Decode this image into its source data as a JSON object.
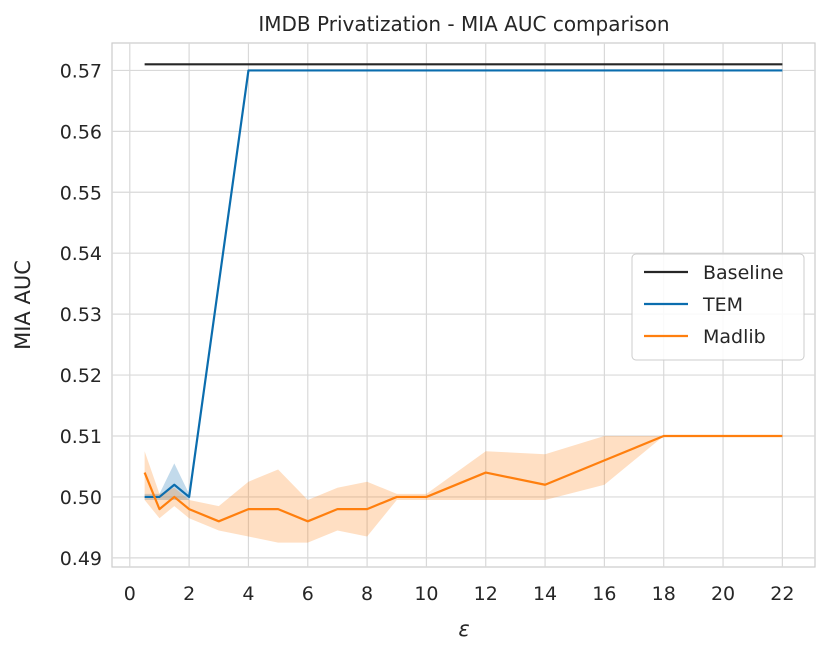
{
  "chart_data": {
    "type": "line",
    "title": "IMDB Privatization - MIA AUC comparison",
    "xlabel": "ε",
    "ylabel": "MIA AUC",
    "xlim": [
      -0.6,
      23.1
    ],
    "ylim": [
      0.4885,
      0.5745
    ],
    "xticks": [
      0,
      2,
      4,
      6,
      8,
      10,
      12,
      14,
      16,
      18,
      20,
      22
    ],
    "yticks": [
      0.49,
      0.5,
      0.51,
      0.52,
      0.53,
      0.54,
      0.55,
      0.56,
      0.57
    ],
    "ytick_labels": [
      "0.49",
      "0.50",
      "0.51",
      "0.52",
      "0.53",
      "0.54",
      "0.55",
      "0.56",
      "0.57"
    ],
    "grid": true,
    "legend_position": "center-right",
    "series": [
      {
        "name": "Baseline",
        "color": "#262626",
        "x": [
          0.5,
          22
        ],
        "values": [
          0.571,
          0.571
        ]
      },
      {
        "name": "TEM",
        "color": "#0b6dae",
        "x": [
          0.5,
          1,
          1.5,
          2,
          4,
          6,
          8,
          10,
          12,
          14,
          16,
          18,
          20,
          22
        ],
        "values": [
          0.5,
          0.5,
          0.502,
          0.5,
          0.57,
          0.57,
          0.57,
          0.57,
          0.57,
          0.57,
          0.57,
          0.57,
          0.57,
          0.57
        ],
        "band_lower": [
          0.4995,
          0.4995,
          0.4995,
          0.4995,
          0.57,
          0.57,
          0.57,
          0.57,
          0.57,
          0.57,
          0.57,
          0.57,
          0.57,
          0.57
        ],
        "band_upper": [
          0.5005,
          0.5005,
          0.5055,
          0.5005,
          0.57,
          0.57,
          0.57,
          0.57,
          0.57,
          0.57,
          0.57,
          0.57,
          0.57,
          0.57
        ]
      },
      {
        "name": "Madlib",
        "color": "#ff7f0e",
        "x": [
          0.5,
          1,
          1.5,
          2,
          3,
          4,
          5,
          6,
          7,
          8,
          9,
          10,
          12,
          14,
          16,
          18,
          20,
          22
        ],
        "values": [
          0.504,
          0.498,
          0.5,
          0.498,
          0.496,
          0.498,
          0.498,
          0.496,
          0.498,
          0.498,
          0.5,
          0.5,
          0.504,
          0.502,
          0.506,
          0.51,
          0.51,
          0.51
        ],
        "band_lower": [
          0.4995,
          0.4965,
          0.4985,
          0.4965,
          0.4945,
          0.4935,
          0.4925,
          0.4925,
          0.4945,
          0.4935,
          0.4995,
          0.4995,
          0.4995,
          0.4995,
          0.502,
          0.51,
          0.51,
          0.51
        ],
        "band_upper": [
          0.5075,
          0.5005,
          0.5015,
          0.4995,
          0.4985,
          0.5025,
          0.5045,
          0.4995,
          0.5015,
          0.5025,
          0.5005,
          0.5005,
          0.5075,
          0.507,
          0.51,
          0.51,
          0.51,
          0.51
        ]
      }
    ]
  }
}
